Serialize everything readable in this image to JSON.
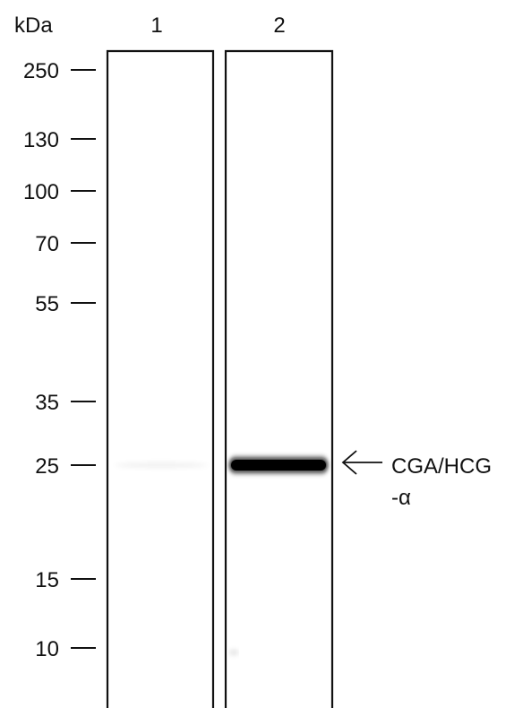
{
  "unit_label": "kDa",
  "lanes": [
    {
      "label": "1"
    },
    {
      "label": "2"
    }
  ],
  "markers": [
    "250",
    "130",
    "100",
    "70",
    "55",
    "35",
    "25",
    "15",
    "10"
  ],
  "target": {
    "line1": "CGA/HCG",
    "line2": "-α"
  },
  "colors": {
    "band": "#0a0a0a",
    "lane_border": "#111111",
    "text": "#111111"
  }
}
